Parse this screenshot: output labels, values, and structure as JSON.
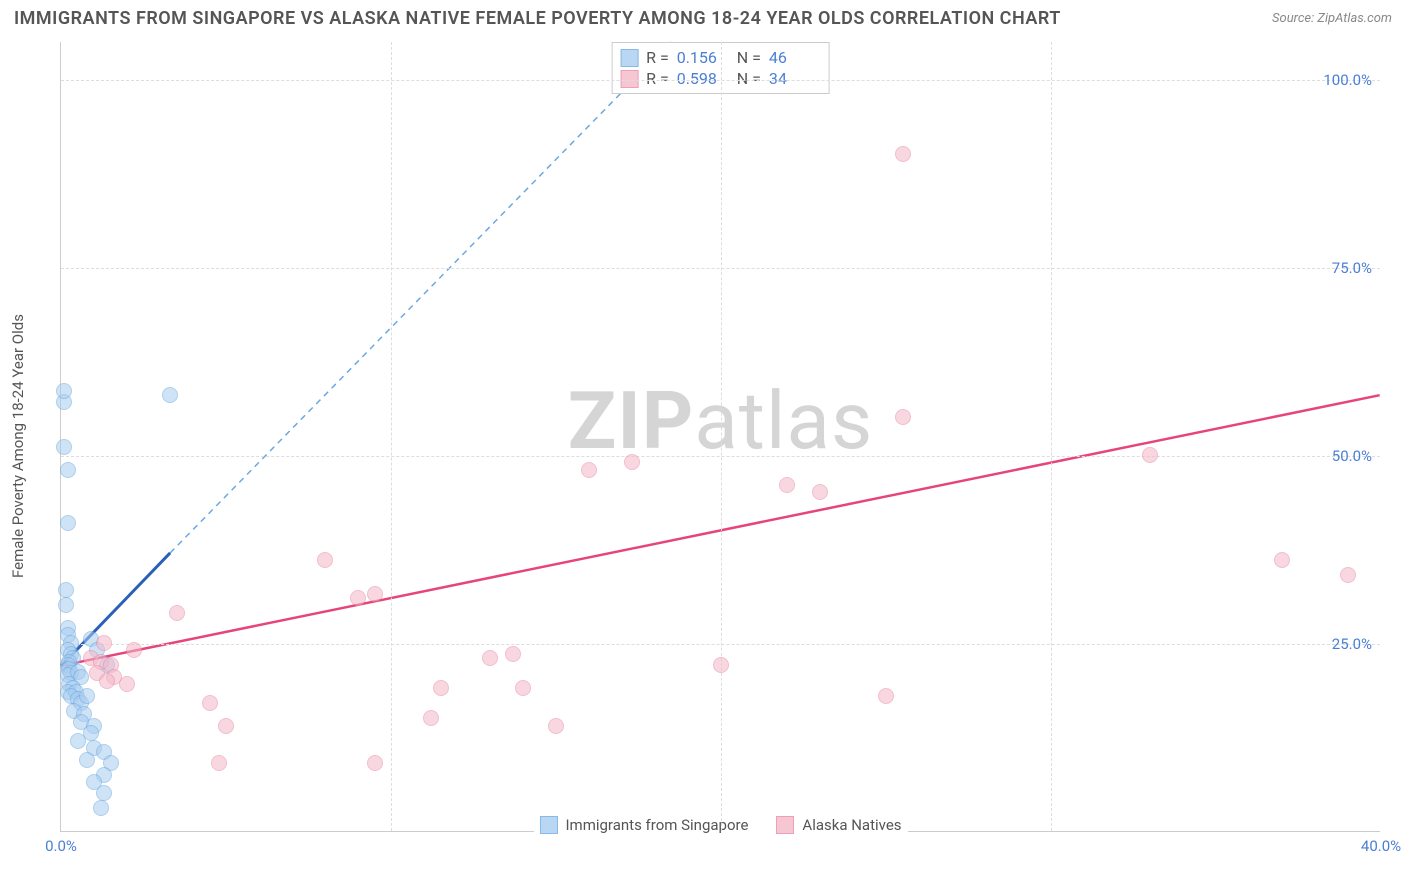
{
  "title": "IMMIGRANTS FROM SINGAPORE VS ALASKA NATIVE FEMALE POVERTY AMONG 18-24 YEAR OLDS CORRELATION CHART",
  "source_label": "Source: ZipAtlas.com",
  "y_axis_title": "Female Poverty Among 18-24 Year Olds",
  "watermark_bold": "ZIP",
  "watermark_light": "atlas",
  "chart": {
    "type": "scatter",
    "xlim": [
      0,
      40
    ],
    "ylim": [
      0,
      105
    ],
    "xtick_labels": [
      "0.0%",
      "40.0%"
    ],
    "xtick_positions": [
      0,
      40
    ],
    "xtick_minor": [
      10,
      20,
      30
    ],
    "ytick_labels": [
      "25.0%",
      "50.0%",
      "75.0%",
      "100.0%"
    ],
    "ytick_positions": [
      25,
      50,
      75,
      100
    ],
    "grid_color": "#dddddd",
    "axis_color": "#cccccc",
    "tick_label_color": "#4a7fd6",
    "background_color": "#ffffff"
  },
  "series": [
    {
      "name": "Immigrants from Singapore",
      "fill_color": "#a8cdf0",
      "stroke_color": "#6ca8e0",
      "fill_opacity": 0.55,
      "marker_radius": 8,
      "R": "0.156",
      "N": "46",
      "trend": {
        "solid": {
          "x1": 0,
          "y1": 22,
          "x2": 3.3,
          "y2": 37,
          "color": "#2b5fb8",
          "width": 3
        },
        "dashed": {
          "x1": 3.3,
          "y1": 37,
          "x2": 18.5,
          "y2": 105,
          "color": "#6ca8e0",
          "width": 1.5,
          "dash": "6,5"
        }
      },
      "points": [
        [
          0.1,
          57
        ],
        [
          0.1,
          58.5
        ],
        [
          0.1,
          51
        ],
        [
          0.2,
          48
        ],
        [
          3.3,
          58
        ],
        [
          0.2,
          41
        ],
        [
          0.15,
          32
        ],
        [
          0.15,
          30
        ],
        [
          0.2,
          27
        ],
        [
          0.2,
          26
        ],
        [
          0.3,
          25
        ],
        [
          0.2,
          24
        ],
        [
          0.9,
          25.5
        ],
        [
          0.3,
          23.5
        ],
        [
          0.35,
          23
        ],
        [
          0.25,
          22.5
        ],
        [
          0.2,
          22
        ],
        [
          0.25,
          21.5
        ],
        [
          0.3,
          21
        ],
        [
          0.2,
          20.8
        ],
        [
          0.5,
          21.2
        ],
        [
          0.6,
          20.5
        ],
        [
          0.25,
          19.5
        ],
        [
          0.35,
          19
        ],
        [
          0.2,
          18.5
        ],
        [
          0.45,
          18.5
        ],
        [
          0.3,
          18
        ],
        [
          0.5,
          17.5
        ],
        [
          0.6,
          17
        ],
        [
          0.8,
          18
        ],
        [
          1.1,
          24
        ],
        [
          1.4,
          22
        ],
        [
          0.4,
          16
        ],
        [
          0.7,
          15.5
        ],
        [
          0.6,
          14.5
        ],
        [
          1.0,
          14
        ],
        [
          0.9,
          13
        ],
        [
          0.5,
          12
        ],
        [
          1.0,
          11
        ],
        [
          1.3,
          10.5
        ],
        [
          0.8,
          9.5
        ],
        [
          1.5,
          9
        ],
        [
          1.3,
          7.5
        ],
        [
          1.0,
          6.5
        ],
        [
          1.3,
          5
        ],
        [
          1.2,
          3
        ]
      ]
    },
    {
      "name": "Alaska Natives",
      "fill_color": "#f5b8c8",
      "stroke_color": "#e88aa5",
      "fill_opacity": 0.55,
      "marker_radius": 8,
      "R": "0.598",
      "N": "34",
      "trend": {
        "solid": {
          "x1": 0,
          "y1": 22,
          "x2": 40,
          "y2": 58,
          "color": "#e6457a",
          "width": 2.5
        }
      },
      "points": [
        [
          25.5,
          90
        ],
        [
          25.5,
          55
        ],
        [
          33,
          50
        ],
        [
          37,
          36
        ],
        [
          39,
          34
        ],
        [
          16,
          48
        ],
        [
          17.3,
          49
        ],
        [
          22,
          46
        ],
        [
          23,
          45
        ],
        [
          20,
          22
        ],
        [
          25,
          18
        ],
        [
          13,
          23
        ],
        [
          13.7,
          23.5
        ],
        [
          14,
          19
        ],
        [
          15,
          14
        ],
        [
          8,
          36
        ],
        [
          9,
          31
        ],
        [
          9.5,
          31.5
        ],
        [
          11.5,
          19
        ],
        [
          11.2,
          15
        ],
        [
          9.5,
          9
        ],
        [
          3.5,
          29
        ],
        [
          4.5,
          17
        ],
        [
          5,
          14
        ],
        [
          4.8,
          9
        ],
        [
          0.9,
          23
        ],
        [
          1.2,
          22.5
        ],
        [
          1.5,
          22
        ],
        [
          1.3,
          25
        ],
        [
          1.1,
          21
        ],
        [
          1.6,
          20.5
        ],
        [
          1.4,
          20
        ],
        [
          2.0,
          19.5
        ],
        [
          2.2,
          24
        ]
      ]
    }
  ],
  "stats_box": {
    "R_label": "R  =",
    "N_label": "N  ="
  },
  "legend": {
    "items": [
      {
        "label": "Immigrants from Singapore",
        "series": 0
      },
      {
        "label": "Alaska Natives",
        "series": 1
      }
    ]
  }
}
